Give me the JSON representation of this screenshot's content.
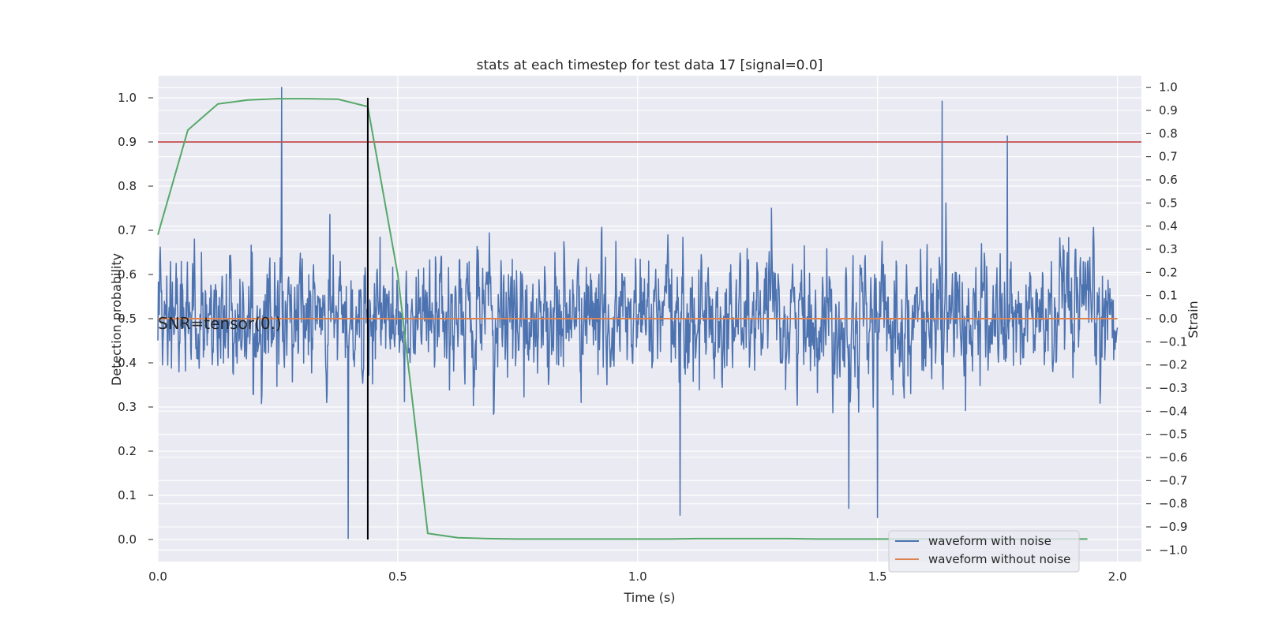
{
  "chart_data": {
    "type": "line",
    "title": "stats at each timestep for test data 17 [signal=0.0]",
    "xlabel": "Time (s)",
    "ylabel_left": "Detection probability",
    "ylabel_right": "Strain",
    "xlim": [
      0.0,
      2.05
    ],
    "ylim_left": [
      -0.05,
      1.05
    ],
    "ylim_right": [
      -1.05,
      1.05
    ],
    "x_ticks": [
      "0.0",
      "0.5",
      "1.0",
      "1.5",
      "2.0"
    ],
    "x_tick_values": [
      0.0,
      0.5,
      1.0,
      1.5,
      2.0
    ],
    "y_ticks_left": [
      "0.0",
      "0.1",
      "0.2",
      "0.3",
      "0.4",
      "0.5",
      "0.6",
      "0.7",
      "0.8",
      "0.9",
      "1.0"
    ],
    "y_tick_values_left": [
      0.0,
      0.1,
      0.2,
      0.3,
      0.4,
      0.5,
      0.6,
      0.7,
      0.8,
      0.9,
      1.0
    ],
    "y_ticks_right": [
      "−1.0",
      "−0.9",
      "−0.8",
      "−0.7",
      "−0.6",
      "−0.5",
      "−0.4",
      "−0.3",
      "−0.2",
      "−0.1",
      "0.0",
      "0.1",
      "0.2",
      "0.3",
      "0.4",
      "0.5",
      "0.6",
      "0.7",
      "0.8",
      "0.9",
      "1.0"
    ],
    "y_tick_values_right": [
      -1.0,
      -0.9,
      -0.8,
      -0.7,
      -0.6,
      -0.5,
      -0.4,
      -0.3,
      -0.2,
      -0.1,
      0.0,
      0.1,
      0.2,
      0.3,
      0.4,
      0.5,
      0.6,
      0.7,
      0.8,
      0.9,
      1.0
    ],
    "grid": true,
    "legend_position": "lower-right",
    "annotation": "SNR=tensor(0.)",
    "detection_probability": {
      "axis": "left",
      "color": "#55a868",
      "x": [
        0.0,
        0.0625,
        0.125,
        0.1875,
        0.25,
        0.3125,
        0.375,
        0.4375,
        0.5,
        0.5625,
        0.625,
        0.6875,
        0.75,
        0.8125,
        0.875,
        0.9375,
        1.0,
        1.0625,
        1.125,
        1.1875,
        1.25,
        1.3125,
        1.375,
        1.4375,
        1.5,
        1.5625,
        1.625,
        1.6875,
        1.75,
        1.8125,
        1.875,
        1.9375
      ],
      "values": [
        0.69,
        0.927,
        0.986,
        0.995,
        0.998,
        0.998,
        0.997,
        0.98,
        0.6,
        0.014,
        0.004,
        0.002,
        0.001,
        0.001,
        0.001,
        0.001,
        0.001,
        0.001,
        0.002,
        0.002,
        0.002,
        0.002,
        0.001,
        0.001,
        0.001,
        0.001,
        0.001,
        0.001,
        0.001,
        0.001,
        0.001,
        0.001
      ]
    },
    "threshold": {
      "axis": "left",
      "value": 0.9,
      "color": "#c44e52"
    },
    "event_marker": {
      "axis": "left",
      "x": 0.4375,
      "y_range": [
        0.0,
        1.0
      ],
      "color": "#000000"
    },
    "series": [
      {
        "name": "waveform with noise",
        "axis": "right",
        "color": "#4c72b0",
        "x_range": [
          0.0,
          2.0
        ],
        "n_points": 2048,
        "value_range": [
          -0.95,
          1.0
        ],
        "peaks": [
          {
            "x": 0.258,
            "value": 1.0
          },
          {
            "x": 1.635,
            "value": 0.94
          },
          {
            "x": 1.77,
            "value": 0.79
          },
          {
            "x": 0.397,
            "value": -0.95
          },
          {
            "x": 1.088,
            "value": -0.85
          },
          {
            "x": 1.5,
            "value": -0.86
          },
          {
            "x": 1.44,
            "value": -0.82
          }
        ]
      },
      {
        "name": "waveform without noise",
        "axis": "right",
        "color": "#dd8452",
        "x": [
          0.0,
          2.0
        ],
        "values": [
          0.0,
          0.0
        ]
      }
    ]
  }
}
